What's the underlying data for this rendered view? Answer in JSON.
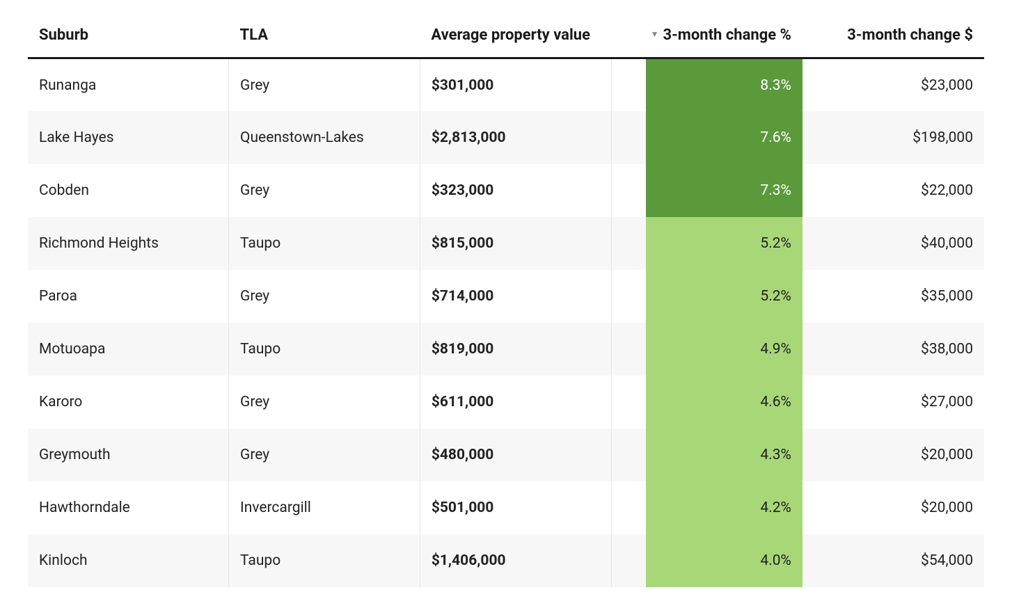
{
  "table": {
    "type": "table",
    "columns": [
      {
        "key": "suburb",
        "label": "Suburb",
        "align": "left",
        "width_pct": 21
      },
      {
        "key": "tla",
        "label": "TLA",
        "align": "left",
        "width_pct": 20
      },
      {
        "key": "avg",
        "label": "Average property value",
        "align": "left",
        "width_pct": 20,
        "bold_cells": true
      },
      {
        "key": "pct",
        "label": "3-month change %",
        "align": "right",
        "width_pct": 20,
        "sorted": "desc",
        "heatmap": true
      },
      {
        "key": "dollar",
        "label": "3-month change $",
        "align": "right",
        "width_pct": 19
      }
    ],
    "sort_indicator": "▼",
    "heatmap_colors": {
      "dark_bg": "#5a9a3a",
      "dark_text": "#ffffff",
      "light_bg": "#a8d778",
      "light_text": "#222222",
      "threshold_pct": 7.0
    },
    "heatmap_fill_width_pct": 82,
    "row_stripe_color": "#f7f7f7",
    "border_color": "#e5e5e5",
    "header_border_color": "#1a1a1a",
    "header_fontsize": 22,
    "cell_fontsize": 21,
    "rows": [
      {
        "suburb": "Runanga",
        "tla": "Grey",
        "avg": "$301,000",
        "pct": "8.3%",
        "pct_shade": "dark",
        "dollar": "$23,000"
      },
      {
        "suburb": "Lake Hayes",
        "tla": "Queenstown-Lakes",
        "avg": "$2,813,000",
        "pct": "7.6%",
        "pct_shade": "dark",
        "dollar": "$198,000"
      },
      {
        "suburb": "Cobden",
        "tla": "Grey",
        "avg": "$323,000",
        "pct": "7.3%",
        "pct_shade": "dark",
        "dollar": "$22,000"
      },
      {
        "suburb": "Richmond Heights",
        "tla": "Taupo",
        "avg": "$815,000",
        "pct": "5.2%",
        "pct_shade": "light",
        "dollar": "$40,000"
      },
      {
        "suburb": "Paroa",
        "tla": "Grey",
        "avg": "$714,000",
        "pct": "5.2%",
        "pct_shade": "light",
        "dollar": "$35,000"
      },
      {
        "suburb": "Motuoapa",
        "tla": "Taupo",
        "avg": "$819,000",
        "pct": "4.9%",
        "pct_shade": "light",
        "dollar": "$38,000"
      },
      {
        "suburb": "Karoro",
        "tla": "Grey",
        "avg": "$611,000",
        "pct": "4.6%",
        "pct_shade": "light",
        "dollar": "$27,000"
      },
      {
        "suburb": "Greymouth",
        "tla": "Grey",
        "avg": "$480,000",
        "pct": "4.3%",
        "pct_shade": "light",
        "dollar": "$20,000"
      },
      {
        "suburb": "Hawthorndale",
        "tla": "Invercargill",
        "avg": "$501,000",
        "pct": "4.2%",
        "pct_shade": "light",
        "dollar": "$20,000"
      },
      {
        "suburb": "Kinloch",
        "tla": "Taupo",
        "avg": "$1,406,000",
        "pct": "4.0%",
        "pct_shade": "light",
        "dollar": "$54,000"
      }
    ]
  }
}
